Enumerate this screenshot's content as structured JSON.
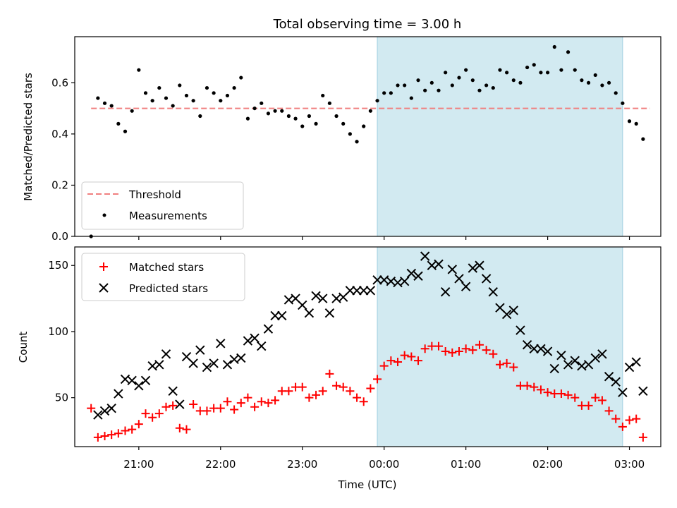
{
  "chart_data": [
    {
      "type": "scatter",
      "title": "Total observing time = 3.00 h",
      "xlabel": "",
      "ylabel": "Matched/Predicted stars",
      "ylim": [
        0,
        0.78
      ],
      "yticks": [
        "0.0",
        "0.2",
        "0.4",
        "0.6"
      ],
      "shaded_region": {
        "from": "23:55",
        "to": "02:55",
        "color": "#add8e6"
      },
      "threshold": {
        "name": "Threshold",
        "value": 0.5,
        "from": "20:25",
        "to": "03:15",
        "color": "#f08080"
      },
      "series": [
        {
          "name": "Measurements",
          "color": "#000000",
          "x": [
            "20:25",
            "20:30",
            "20:35",
            "20:40",
            "20:45",
            "20:50",
            "20:55",
            "21:00",
            "21:05",
            "21:10",
            "21:15",
            "21:20",
            "21:25",
            "21:30",
            "21:35",
            "21:40",
            "21:45",
            "21:50",
            "21:55",
            "22:00",
            "22:05",
            "22:10",
            "22:15",
            "22:20",
            "22:25",
            "22:30",
            "22:35",
            "22:40",
            "22:45",
            "22:50",
            "22:55",
            "23:00",
            "23:05",
            "23:10",
            "23:15",
            "23:20",
            "23:25",
            "23:30",
            "23:35",
            "23:40",
            "23:45",
            "23:50",
            "23:55",
            "00:00",
            "00:05",
            "00:10",
            "00:15",
            "00:20",
            "00:25",
            "00:30",
            "00:35",
            "00:40",
            "00:45",
            "00:50",
            "00:55",
            "01:00",
            "01:05",
            "01:10",
            "01:15",
            "01:20",
            "01:25",
            "01:30",
            "01:35",
            "01:40",
            "01:45",
            "01:50",
            "01:55",
            "02:00",
            "02:05",
            "02:10",
            "02:15",
            "02:20",
            "02:25",
            "02:30",
            "02:35",
            "02:40",
            "02:45",
            "02:50",
            "02:55",
            "03:00",
            "03:05",
            "03:10"
          ],
          "values": [
            0.0,
            0.54,
            0.52,
            0.51,
            0.44,
            0.41,
            0.49,
            0.65,
            0.56,
            0.53,
            0.58,
            0.54,
            0.51,
            0.59,
            0.55,
            0.53,
            0.47,
            0.58,
            0.56,
            0.53,
            0.55,
            0.58,
            0.62,
            0.46,
            0.5,
            0.52,
            0.48,
            0.49,
            0.49,
            0.47,
            0.46,
            0.43,
            0.47,
            0.44,
            0.55,
            0.52,
            0.47,
            0.44,
            0.4,
            0.37,
            0.43,
            0.49,
            0.53,
            0.56,
            0.56,
            0.59,
            0.59,
            0.54,
            0.61,
            0.57,
            0.6,
            0.57,
            0.64,
            0.59,
            0.62,
            0.65,
            0.61,
            0.57,
            0.59,
            0.58,
            0.65,
            0.64,
            0.61,
            0.6,
            0.66,
            0.67,
            0.64,
            0.64,
            0.74,
            0.65,
            0.72,
            0.65,
            0.61,
            0.6,
            0.63,
            0.59,
            0.6,
            0.56,
            0.52,
            0.45,
            0.44,
            0.38
          ]
        }
      ]
    },
    {
      "type": "scatter",
      "title": "",
      "xlabel": "Time (UTC)",
      "ylabel": "Count",
      "ylim": [
        13,
        164
      ],
      "yticks": [
        "50",
        "100",
        "150"
      ],
      "xticks": [
        "21:00",
        "22:00",
        "23:00",
        "00:00",
        "01:00",
        "02:00",
        "03:00"
      ],
      "shaded_region": {
        "from": "23:55",
        "to": "02:55",
        "color": "#add8e6"
      },
      "series": [
        {
          "name": "Matched stars",
          "marker": "plus",
          "color": "#ff0000",
          "x": [
            "20:25",
            "20:30",
            "20:35",
            "20:40",
            "20:45",
            "20:50",
            "20:55",
            "21:00",
            "21:05",
            "21:10",
            "21:15",
            "21:20",
            "21:25",
            "21:30",
            "21:35",
            "21:40",
            "21:45",
            "21:50",
            "21:55",
            "22:00",
            "22:05",
            "22:10",
            "22:15",
            "22:20",
            "22:25",
            "22:30",
            "22:35",
            "22:40",
            "22:45",
            "22:50",
            "22:55",
            "23:00",
            "23:05",
            "23:10",
            "23:15",
            "23:20",
            "23:25",
            "23:30",
            "23:35",
            "23:40",
            "23:45",
            "23:50",
            "23:55",
            "00:00",
            "00:05",
            "00:10",
            "00:15",
            "00:20",
            "00:25",
            "00:30",
            "00:35",
            "00:40",
            "00:45",
            "00:50",
            "00:55",
            "01:00",
            "01:05",
            "01:10",
            "01:15",
            "01:20",
            "01:25",
            "01:30",
            "01:35",
            "01:40",
            "01:45",
            "01:50",
            "01:55",
            "02:00",
            "02:05",
            "02:10",
            "02:15",
            "02:20",
            "02:25",
            "02:30",
            "02:35",
            "02:40",
            "02:45",
            "02:50",
            "02:55",
            "03:00",
            "03:05",
            "03:10"
          ],
          "values": [
            42,
            20,
            21,
            22,
            23,
            25,
            26,
            30,
            38,
            35,
            38,
            43,
            44,
            27,
            26,
            45,
            40,
            40,
            42,
            42,
            47,
            41,
            46,
            50,
            43,
            47,
            46,
            48,
            55,
            55,
            58,
            58,
            50,
            52,
            55,
            68,
            59,
            58,
            55,
            50,
            47,
            57,
            64,
            74,
            78,
            77,
            82,
            81,
            78,
            87,
            89,
            89,
            85,
            84,
            85,
            87,
            86,
            90,
            86,
            83,
            75,
            76,
            73,
            59,
            59,
            58,
            56,
            54,
            53,
            53,
            52,
            50,
            44,
            44,
            50,
            48,
            40,
            34,
            28,
            33,
            34,
            20
          ]
        },
        {
          "name": "Predicted stars",
          "marker": "x",
          "color": "#000000",
          "x": [
            "20:30",
            "20:35",
            "20:40",
            "20:45",
            "20:50",
            "20:55",
            "21:00",
            "21:05",
            "21:10",
            "21:15",
            "21:20",
            "21:25",
            "21:30",
            "21:35",
            "21:40",
            "21:45",
            "21:50",
            "21:55",
            "22:00",
            "22:05",
            "22:10",
            "22:15",
            "22:20",
            "22:25",
            "22:30",
            "22:35",
            "22:40",
            "22:45",
            "22:50",
            "22:55",
            "23:00",
            "23:05",
            "23:10",
            "23:15",
            "23:20",
            "23:25",
            "23:30",
            "23:35",
            "23:40",
            "23:45",
            "23:50",
            "23:55",
            "00:00",
            "00:05",
            "00:10",
            "00:15",
            "00:20",
            "00:25",
            "00:30",
            "00:35",
            "00:40",
            "00:45",
            "00:50",
            "00:55",
            "01:00",
            "01:05",
            "01:10",
            "01:15",
            "01:20",
            "01:25",
            "01:30",
            "01:35",
            "01:40",
            "01:45",
            "01:50",
            "01:55",
            "02:00",
            "02:05",
            "02:10",
            "02:15",
            "02:20",
            "02:25",
            "02:30",
            "02:35",
            "02:40",
            "02:45",
            "02:50",
            "02:55",
            "03:00",
            "03:05",
            "03:10"
          ],
          "values": [
            37,
            40,
            42,
            53,
            64,
            63,
            59,
            63,
            74,
            75,
            83,
            55,
            45,
            81,
            76,
            86,
            73,
            76,
            91,
            75,
            79,
            80,
            93,
            95,
            89,
            102,
            112,
            112,
            124,
            125,
            120,
            114,
            127,
            125,
            114,
            125,
            126,
            131,
            131,
            131,
            131,
            139,
            139,
            138,
            137,
            138,
            144,
            142,
            157,
            150,
            151,
            130,
            147,
            140,
            134,
            148,
            150,
            140,
            130,
            118,
            113,
            116,
            101,
            90,
            87,
            87,
            85,
            72,
            82,
            75,
            78,
            74,
            75,
            80,
            83,
            66,
            62,
            54,
            73,
            77,
            55
          ]
        }
      ]
    }
  ]
}
